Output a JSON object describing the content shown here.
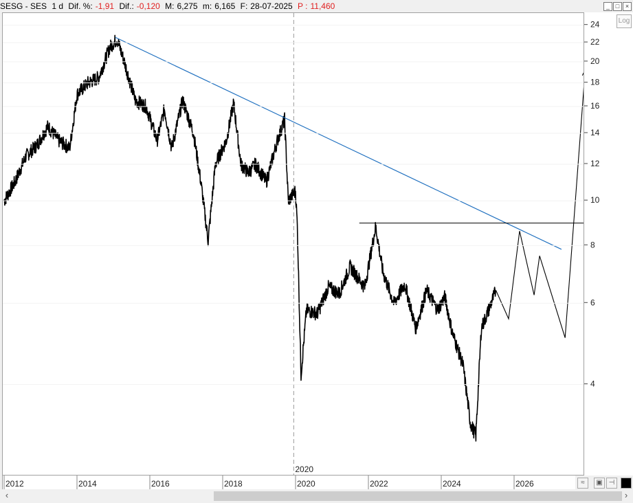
{
  "header": {
    "symbol": "SESG - SES",
    "interval": "1 d",
    "dif_pct_label": "Dif. %:",
    "dif_pct_value": "-1,91",
    "dif_label": "Dif.:",
    "dif_value": "-0,120",
    "max_label": "M:",
    "max_value": "6,275",
    "min_label": "m:",
    "min_value": "6,165",
    "date_label": "F:",
    "date_value": "28-07-2025",
    "p_label": "P :",
    "p_value": "11,460"
  },
  "controls": {
    "log_label": "Log"
  },
  "chart_data": {
    "type": "line",
    "y_scale": "log",
    "ylim": [
      2.55,
      25.5
    ],
    "y_ticks": [
      "24",
      "22",
      "20",
      "18",
      "16",
      "14",
      "12",
      "10",
      "8",
      "6",
      "4"
    ],
    "x_ticks": [
      "2012",
      "2014",
      "2016",
      "2018",
      "2020",
      "2022",
      "2024",
      "2026"
    ],
    "x_range": [
      2012.0,
      2027.7
    ],
    "divider_label": "2020",
    "series": [
      {
        "values_x": [
          2012.0,
          2012.3,
          2012.6,
          2012.9,
          2013.2,
          2013.5,
          2013.8,
          2014.0,
          2014.3,
          2014.6,
          2014.9,
          2015.1,
          2015.3,
          2015.6,
          2015.9,
          2016.2,
          2016.4,
          2016.6,
          2016.9,
          2017.2,
          2017.4,
          2017.6,
          2017.8,
          2018.1,
          2018.3,
          2018.5,
          2018.7,
          2018.9,
          2019.2,
          2019.5,
          2019.7,
          2019.8,
          2020.0,
          2020.05,
          2020.15,
          2020.3,
          2020.6,
          2020.9,
          2021.2,
          2021.5,
          2021.9,
          2022.2,
          2022.4,
          2022.7,
          2023.0,
          2023.3,
          2023.6,
          2023.9,
          2024.1,
          2024.3,
          2024.6,
          2024.8,
          2024.95,
          2025.1,
          2025.3,
          2025.5
        ],
        "values_y": [
          10.0,
          11.0,
          12.5,
          13.2,
          14.5,
          13.5,
          13.0,
          17.0,
          18.0,
          18.5,
          21.5,
          22.4,
          20.0,
          16.5,
          16.0,
          13.5,
          15.8,
          13.0,
          16.5,
          14.0,
          11.0,
          8.2,
          12.0,
          13.5,
          16.3,
          12.0,
          11.5,
          12.0,
          11.0,
          13.5,
          15.0,
          10.0,
          10.5,
          8.8,
          4.2,
          5.8,
          5.7,
          6.5,
          6.3,
          7.2,
          6.5,
          8.8,
          7.0,
          6.0,
          6.6,
          5.3,
          6.4,
          5.8,
          6.2,
          5.2,
          4.4,
          3.3,
          3.1,
          5.3,
          5.8,
          6.4
        ]
      }
    ],
    "annotations": {
      "trendline": {
        "from": [
          2015.05,
          22.6
        ],
        "to": [
          2027.3,
          7.85
        ],
        "color": "#1e6fbf"
      },
      "hline": {
        "from_x": 2021.75,
        "to_x": 2027.7,
        "y": 8.95
      },
      "projection": {
        "x": [
          2025.5,
          2025.85,
          2026.15,
          2026.55,
          2026.7,
          2027.4,
          2027.95
        ],
        "y": [
          6.4,
          5.55,
          8.6,
          6.25,
          7.6,
          5.05,
          19.2
        ]
      }
    }
  }
}
